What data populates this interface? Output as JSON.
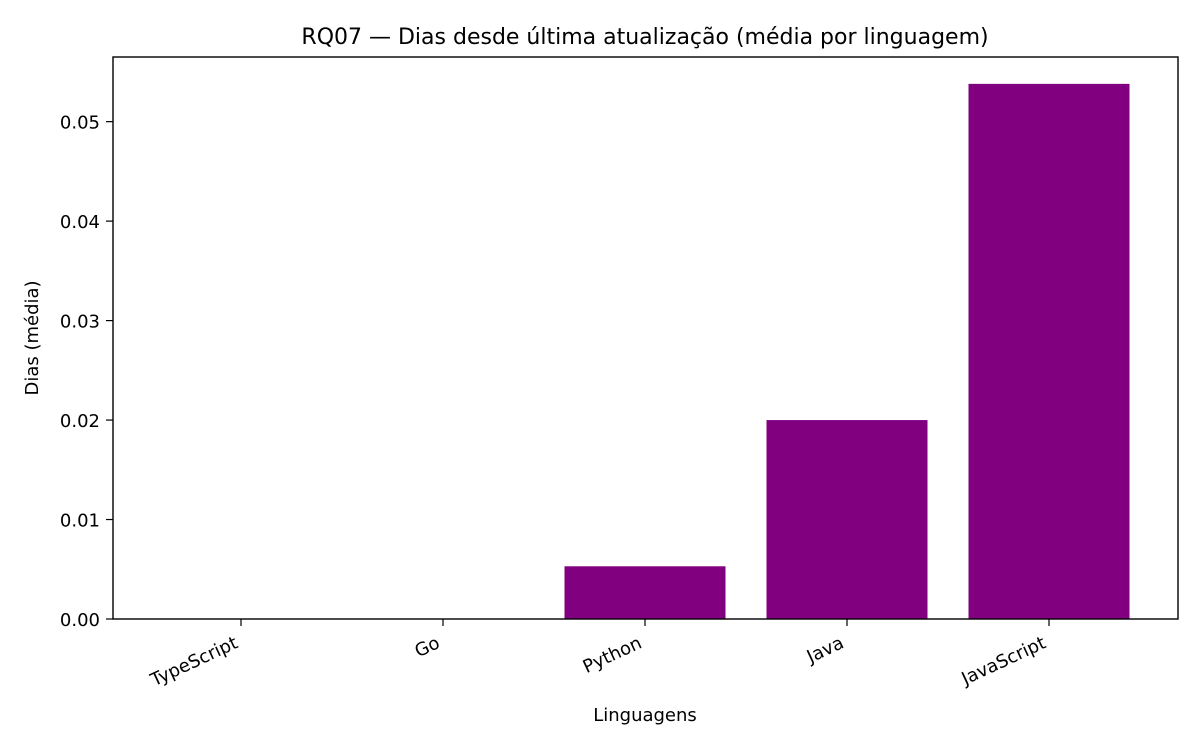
{
  "chart_data": {
    "type": "bar",
    "title": "RQ07 — Dias desde última atualização (média por linguagem)",
    "xlabel": "Linguagens",
    "ylabel": "Dias (média)",
    "categories": [
      "TypeScript",
      "Go",
      "Python",
      "Java",
      "JavaScript"
    ],
    "values": [
      0.0,
      0.0,
      0.0053,
      0.02,
      0.0538
    ],
    "ylim": [
      0,
      0.0565
    ],
    "yticks": [
      "0.00",
      "0.01",
      "0.02",
      "0.03",
      "0.04",
      "0.05"
    ],
    "bar_color": "#800080",
    "grid": false,
    "legend": "none"
  }
}
